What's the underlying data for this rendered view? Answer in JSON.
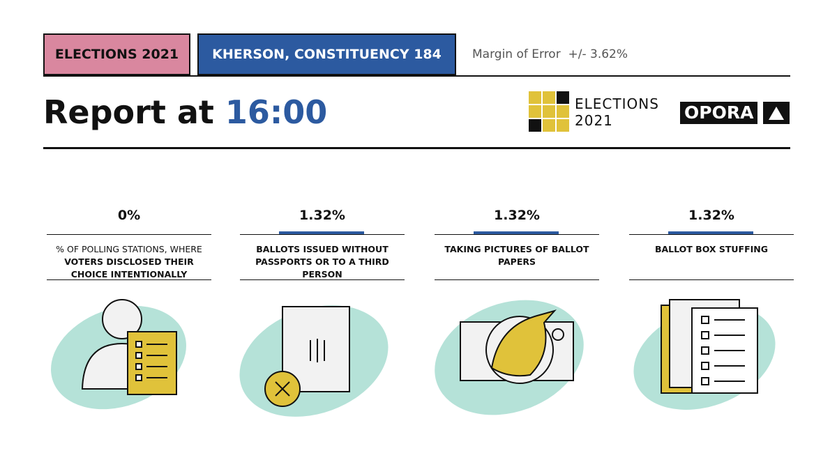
{
  "header": {
    "tags": [
      "ELECTIONS 2021",
      "KHERSON, CONSTITUENCY 184"
    ],
    "margin": "Margin of Error  +/- 3.62%"
  },
  "title": {
    "prefix": "Report at",
    "time": "16:00"
  },
  "logos": {
    "elections": "ELECTIONS",
    "year": "2021",
    "opora": "OPORA"
  },
  "stats": [
    {
      "value": "0%",
      "label": [
        "% OF POLLING STATIONS, WHERE ",
        "VOTERS DISCLOSED THEIR CHOICE INTENTIONALLY"
      ]
    },
    {
      "value": "1.32%",
      "label": [
        "BALLOTS ISSUED WITHOUT PASSPORTS OR TO A THIRD PERSON"
      ]
    },
    {
      "value": "1.32%",
      "label": [
        "TAKING PICTURES OF BALLOT PAPERS"
      ]
    },
    {
      "value": "1.32%",
      "label": [
        "BALLOT BOX STUFFING"
      ]
    }
  ]
}
